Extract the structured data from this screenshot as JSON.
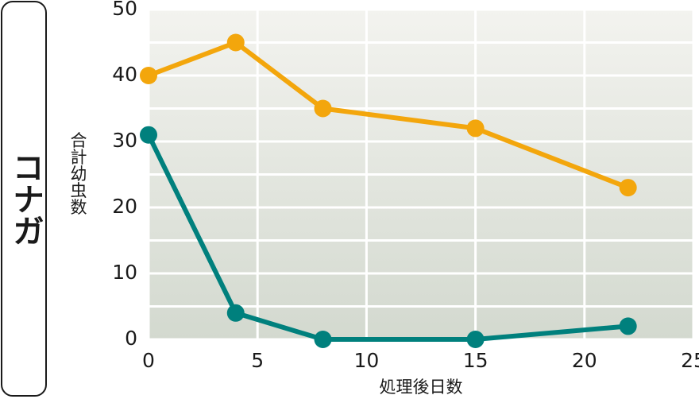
{
  "chart_data": {
    "type": "line",
    "side_label": "コナガ",
    "ylabel": "合計幼虫数",
    "xlabel": "処理後日数",
    "series": [
      {
        "color": "#f3a60c",
        "x": [
          0,
          4,
          8,
          15,
          22
        ],
        "values": [
          40,
          45,
          35,
          32,
          23
        ]
      },
      {
        "color": "#00807d",
        "x": [
          0,
          4,
          8,
          15,
          22
        ],
        "values": [
          31,
          4,
          0,
          0,
          2
        ]
      }
    ],
    "xlim": [
      0,
      25
    ],
    "xticks": [
      0,
      5,
      10,
      15,
      20,
      25
    ],
    "ylim": [
      0,
      50
    ],
    "yticks": [
      0,
      10,
      20,
      30,
      40,
      50
    ],
    "yminor": [
      5,
      15,
      25,
      35,
      45
    ],
    "grid": true
  }
}
